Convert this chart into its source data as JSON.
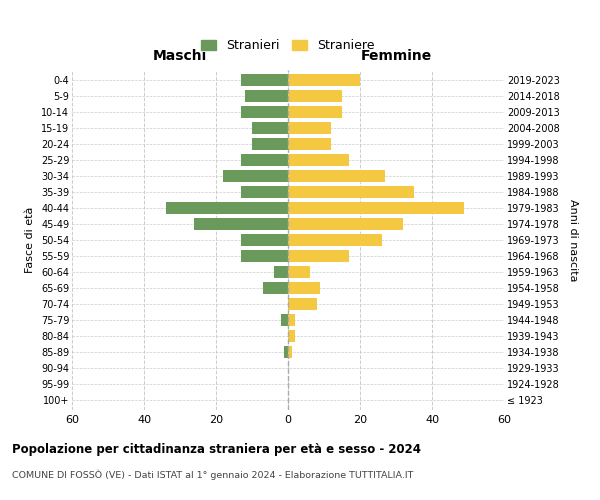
{
  "age_groups": [
    "100+",
    "95-99",
    "90-94",
    "85-89",
    "80-84",
    "75-79",
    "70-74",
    "65-69",
    "60-64",
    "55-59",
    "50-54",
    "45-49",
    "40-44",
    "35-39",
    "30-34",
    "25-29",
    "20-24",
    "15-19",
    "10-14",
    "5-9",
    "0-4"
  ],
  "birth_years": [
    "≤ 1923",
    "1924-1928",
    "1929-1933",
    "1934-1938",
    "1939-1943",
    "1944-1948",
    "1949-1953",
    "1954-1958",
    "1959-1963",
    "1964-1968",
    "1969-1973",
    "1974-1978",
    "1979-1983",
    "1984-1988",
    "1989-1993",
    "1994-1998",
    "1999-2003",
    "2004-2008",
    "2009-2013",
    "2014-2018",
    "2019-2023"
  ],
  "males": [
    0,
    0,
    0,
    1,
    0,
    2,
    0,
    7,
    4,
    13,
    13,
    26,
    34,
    13,
    18,
    13,
    10,
    10,
    13,
    12,
    13
  ],
  "females": [
    0,
    0,
    0,
    1,
    2,
    2,
    8,
    9,
    6,
    17,
    26,
    32,
    49,
    35,
    27,
    17,
    12,
    12,
    15,
    15,
    20
  ],
  "male_color": "#6a9a5b",
  "female_color": "#f5c842",
  "title": "Popolazione per cittadinanza straniera per età e sesso - 2024",
  "subtitle": "COMUNE DI FOSSÒ (VE) - Dati ISTAT al 1° gennaio 2024 - Elaborazione TUTTITALIA.IT",
  "xlabel_left": "Maschi",
  "xlabel_right": "Femmine",
  "ylabel_left": "Fasce di età",
  "ylabel_right": "Anni di nascita",
  "legend_male": "Stranieri",
  "legend_female": "Straniere",
  "xlim": 60,
  "background_color": "#ffffff",
  "grid_color": "#cccccc"
}
